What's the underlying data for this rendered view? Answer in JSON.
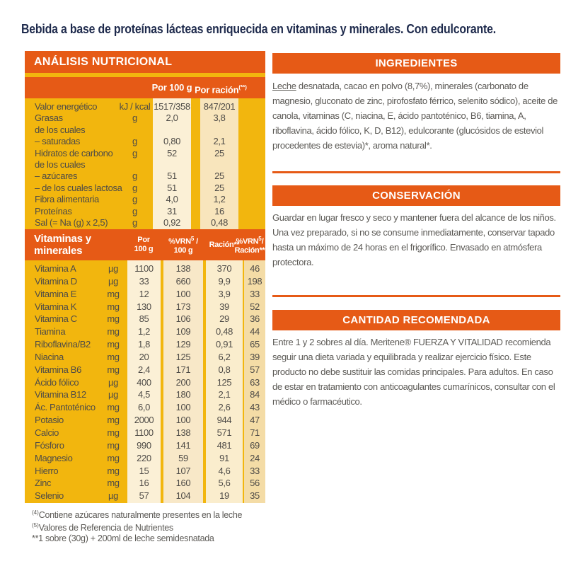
{
  "title": "Bebida a base de proteínas lácteas enriquecida en vitaminas y minerales. Con edulcorante.",
  "colors": {
    "orange": "#E65A16",
    "yellow": "#F2B60E",
    "navy": "#1E2A4C",
    "cream_light": "#FBF0D6",
    "cream_tan": "#F8E5BC",
    "text_gray": "#5C5A56",
    "table_text": "#4E4B47"
  },
  "analisis": {
    "header": "ANÁLISIS NUTRICIONAL",
    "col_per100": "Por 100 g",
    "col_racion": "Por ración",
    "col_racion_sup": "(**)",
    "rows": [
      {
        "label": "Valor energético",
        "sub": "",
        "unit": "kJ / kcal",
        "per100": "1517/358",
        "racion": "847/201"
      },
      {
        "label": "Grasas",
        "sub": "de los cuales",
        "unit": "g",
        "per100": "2,0",
        "racion": "3,8"
      },
      {
        "label": "– saturadas",
        "sub": "",
        "unit": "g",
        "per100": "0,80",
        "racion": "2,1"
      },
      {
        "label": "Hidratos de carbono",
        "sub": "de los cuales",
        "unit": "g",
        "per100": "52",
        "racion": "25"
      },
      {
        "label": "– azúcares",
        "sub": "",
        "unit": "g",
        "per100": "51",
        "racion": "25"
      },
      {
        "label": "– de los cuales lactosa",
        "sub": "",
        "unit": "g",
        "per100": "51",
        "racion": "25"
      },
      {
        "label": "Fibra alimentaria",
        "sub": "",
        "unit": "g",
        "per100": "4,0",
        "racion": "1,2"
      },
      {
        "label": "Proteínas",
        "sub": "",
        "unit": "g",
        "per100": "31",
        "racion": "16"
      },
      {
        "label": "Sal (= Na (g) x 2,5)",
        "sub": "",
        "unit": "g",
        "per100": "0,92",
        "racion": "0,48"
      }
    ],
    "vit_header": {
      "title_line1": "Vitaminas y",
      "title_line2": "minerales",
      "cols": [
        {
          "l1": "Por",
          "sup": "",
          "post": "",
          "l2": "100 g"
        },
        {
          "l1": "%VRN",
          "sup": "5",
          "post": " /",
          "l2": "100 g"
        },
        {
          "l1": "Ración**",
          "sup": "",
          "post": "",
          "l2": ""
        },
        {
          "l1": "%VRN",
          "sup": "5",
          "post": "/",
          "l2": "Ración**"
        }
      ]
    },
    "vitamins": [
      [
        "Vitamina A",
        "µg",
        "1100",
        "138",
        "370",
        "46"
      ],
      [
        "Vitamina D",
        "µg",
        "33",
        "660",
        "9,9",
        "198"
      ],
      [
        "Vitamina E",
        "mg",
        "12",
        "100",
        "3,9",
        "33"
      ],
      [
        "Vitamina K",
        "mg",
        "130",
        "173",
        "39",
        "52"
      ],
      [
        "Vitamina C",
        "mg",
        "85",
        "106",
        "29",
        "36"
      ],
      [
        "Tiamina",
        "mg",
        "1,2",
        "109",
        "0,48",
        "44"
      ],
      [
        "Riboflavina/B2",
        "mg",
        "1,8",
        "129",
        "0,91",
        "65"
      ],
      [
        "Niacina",
        "mg",
        "20",
        "125",
        "6,2",
        "39"
      ],
      [
        "Vitamina B6",
        "mg",
        "2,4",
        "171",
        "0,8",
        "57"
      ],
      [
        "Ácido fólico",
        "µg",
        "400",
        "200",
        "125",
        "63"
      ],
      [
        "Vitamina B12",
        "µg",
        "4,5",
        "180",
        "2,1",
        "84"
      ],
      [
        "Ác. Pantoténico",
        "mg",
        "6,0",
        "100",
        "2,6",
        "43"
      ],
      [
        "Potasio",
        "mg",
        "2000",
        "100",
        "944",
        "47"
      ],
      [
        "Calcio",
        "mg",
        "1100",
        "138",
        "571",
        "71"
      ],
      [
        "Fósforo",
        "mg",
        "990",
        "141",
        "481",
        "69"
      ],
      [
        "Magnesio",
        "mg",
        "220",
        "59",
        "91",
        "24"
      ],
      [
        "Hierro",
        "mg",
        "15",
        "107",
        "4,6",
        "33"
      ],
      [
        "Zinc",
        "mg",
        "16",
        "160",
        "5,6",
        "56"
      ],
      [
        "Selenio",
        "µg",
        "57",
        "104",
        "19",
        "35"
      ]
    ]
  },
  "footnotes": [
    {
      "sup": "(4)",
      "text": "Contiene azúcares naturalmente presentes en la leche"
    },
    {
      "sup": "(5)",
      "text": "Valores de Referencia de Nutrientes"
    },
    {
      "sup": "",
      "text": "**1 sobre (30g) + 200ml de leche semidesnatada"
    }
  ],
  "sections": [
    {
      "header": "INGREDIENTES",
      "lead": "Leche",
      "body": " desnatada, cacao en polvo (8,7%), minerales (carbonato de magnesio, gluconato de zinc, pirofosfato férrico, selenito sódico), aceite de canola, vitaminas (C, niacina, E, ácido pantoténico, B6, tiamina, A, riboflavina, ácido fólico, K, D, B12), edulcorante (glucósidos de esteviol procedentes de estevia)*, aroma natural*."
    },
    {
      "header": "CONSERVACIÓN",
      "lead": "",
      "body": "Guardar en lugar fresco y seco y mantener fuera del alcance de los niños. Una vez preparado, si no se consume inmediatamente, conservar tapado hasta un máximo de 24 horas en el frigorífico. Envasado en atmósfera protectora."
    },
    {
      "header": "CANTIDAD RECOMENDADA",
      "lead": "",
      "body": "Entre 1 y 2 sobres al día. Meritene® FUERZA Y VITALIDAD recomienda seguir una dieta variada y equilibrada y realizar ejercicio físico. Este producto no debe sustituir las comidas principales. Para adultos. En caso de estar en tratamiento con anticoagulantes cumarínicos, consultar con el médico o farmacéutico."
    }
  ]
}
